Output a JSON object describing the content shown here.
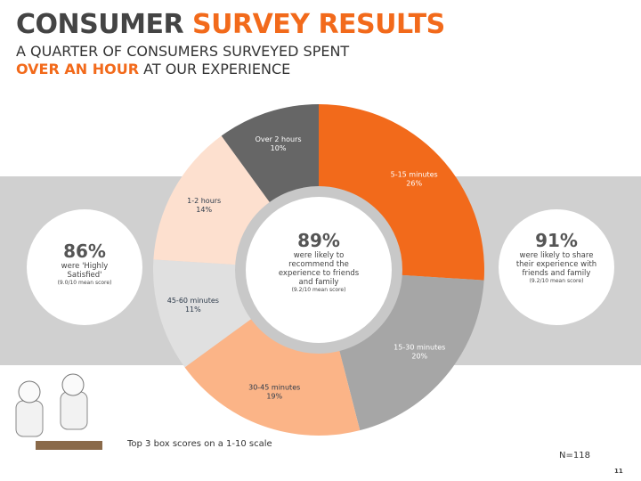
{
  "header": {
    "title_dark": "CONSUMER",
    "title_accent": "SURVEY RESULTS",
    "subtitle_line1": "A QUARTER OF CONSUMERS SURVEYED SPENT",
    "subtitle_accent": "OVER AN HOUR",
    "subtitle_rest": "AT OUR EXPERIENCE"
  },
  "chart_data": {
    "type": "donut",
    "categories": [
      "5-15 minutes",
      "15-30 minutes",
      "30-45 minutes",
      "45-60 minutes",
      "1-2 hours",
      "Over 2 hours"
    ],
    "values": [
      26,
      20,
      19,
      11,
      14,
      10
    ],
    "value_labels": [
      "26%",
      "20%",
      "19%",
      "11%",
      "14%",
      "10%"
    ],
    "colors": [
      "#f26a1b",
      "#a6a6a6",
      "#fbb487",
      "#e0e0e0",
      "#fde0cf",
      "#666666"
    ]
  },
  "callouts": [
    {
      "figure": "86%",
      "text": "were 'Highly Satisfied'",
      "note": "(9.0/10 mean score)"
    },
    {
      "figure": "89%",
      "text": "were likely to recommend the experience to friends and family",
      "note": "(9.2/10 mean score)"
    },
    {
      "figure": "91%",
      "text": "were likely to share their experience with friends and family",
      "note": "(9.2/10 mean score)"
    }
  ],
  "footnote": "Top 3 box scores on a 1-10 scale",
  "sample_size": "N=118",
  "page_number": "11"
}
